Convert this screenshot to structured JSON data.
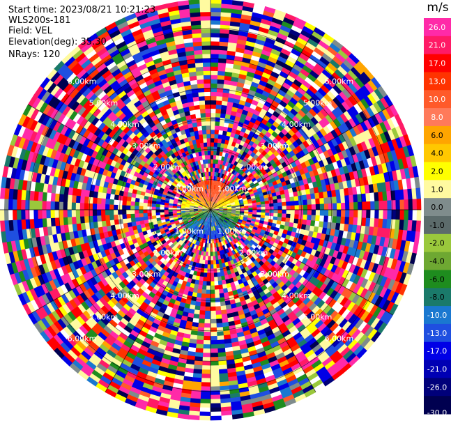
{
  "info": {
    "start_time": "Start time: 2023/08/21 10:21:23",
    "instrument": "WLS200s-181",
    "field": "Field: VEL",
    "elevation": "Elevation(deg): 35.30",
    "nrays": "NRays: 120"
  },
  "chart_data": {
    "type": "heatmap",
    "projection": "polar-ppi",
    "field": "VEL",
    "units": "m/s",
    "range_ring_labels": [
      "1.00km",
      "2.00km",
      "3.00km",
      "4.00km",
      "5.00km",
      "6.00km"
    ],
    "range_rings_km": [
      1,
      2,
      3,
      4,
      5,
      6
    ],
    "max_range_km": 6.95,
    "n_rays": 120,
    "colorbar": {
      "label": "m/s",
      "ticks": [
        "26.0",
        "21.0",
        "17.0",
        "13.0",
        "10.0",
        "8.0",
        "6.0",
        "4.0",
        "2.0",
        "1.0",
        "0.0",
        "-1.0",
        "-2.0",
        "-4.0",
        "-6.0",
        "-8.0",
        "-10.0",
        "-13.0",
        "-17.0",
        "-21.0",
        "-26.0",
        "-30.0"
      ],
      "colors": [
        "#ff2aa8",
        "#ff1a66",
        "#ff0000",
        "#ff3300",
        "#ff5a2a",
        "#ff7a5a",
        "#ffa500",
        "#ffc800",
        "#ffff00",
        "#fffaa0",
        "#7f8c8c",
        "#5c6b6b",
        "#9ac83c",
        "#6ea832",
        "#1e8c1e",
        "#1a7a6a",
        "#1a78d0",
        "#1f4fe0",
        "#0000e6",
        "#0000b4",
        "#00007a",
        "#000050"
      ]
    },
    "near_field_pattern": {
      "description_values": "positive velocities (red/orange/yellow) toward north half, negative (blue) toward south half within ~1 km"
    }
  }
}
